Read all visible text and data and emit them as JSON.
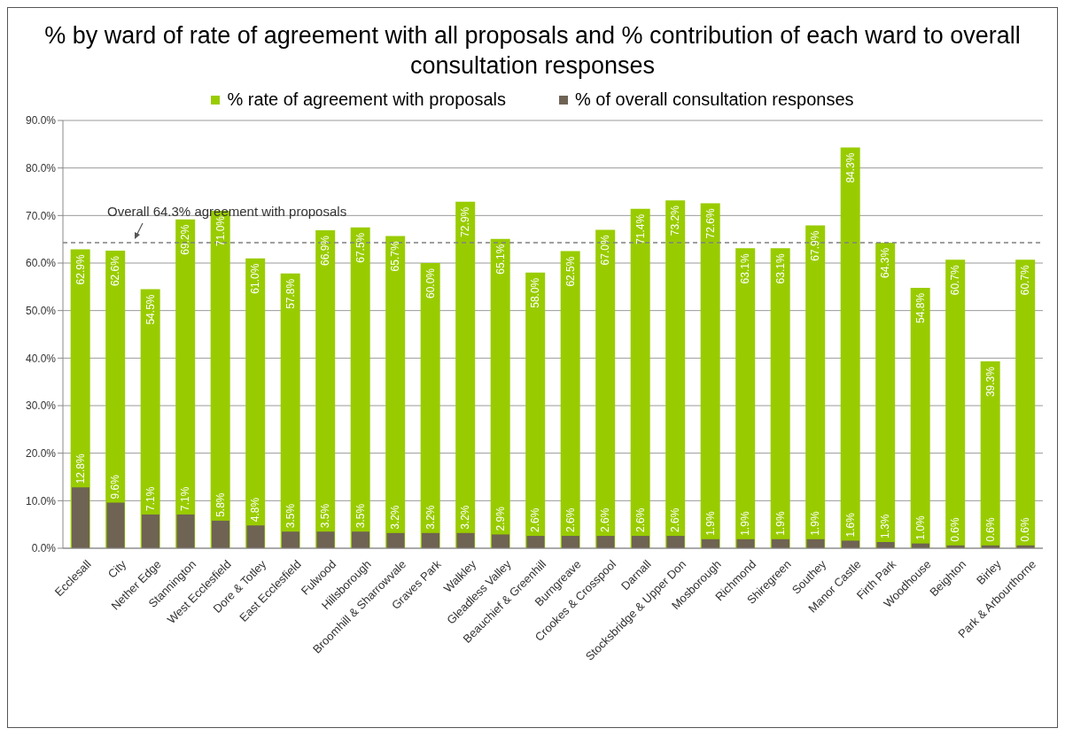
{
  "chart_data": {
    "type": "bar",
    "title": "% by ward of rate of agreement with all proposals and % contribution of each ward to overall consultation responses",
    "categories": [
      "Ecclesall",
      "City",
      "Nether Edge",
      "Stannington",
      "West Ecclesfield",
      "Dore & Totley",
      "East Ecclesfield",
      "Fulwood",
      "Hillsborough",
      "Broomhill & Sharrowvale",
      "Graves Park",
      "Walkley",
      "Gleadless Valley",
      "Beauchief & Greenhill",
      "Burngreave",
      "Crookes & Crosspool",
      "Darnall",
      "Stocksbridge & Upper Don",
      "Mosborough",
      "Richmond",
      "Shiregreen",
      "Southey",
      "Manor Castle",
      "Firth Park",
      "Woodhouse",
      "Beighton",
      "Birley",
      "Park & Arbourthorne"
    ],
    "series": [
      {
        "name": "% rate of agreement with proposals",
        "color": "#99cc00",
        "values": [
          62.9,
          62.6,
          54.5,
          69.2,
          71.0,
          61.0,
          57.8,
          66.9,
          67.5,
          65.7,
          60.0,
          72.9,
          65.1,
          58.0,
          62.5,
          67.0,
          71.4,
          73.2,
          72.6,
          63.1,
          63.1,
          67.9,
          84.3,
          64.3,
          54.8,
          60.7,
          39.3,
          60.7
        ],
        "value_labels": [
          "62.9%",
          "62.6%",
          "54.5%",
          "69.2%",
          "71.0%",
          "61.0%",
          "57.8%",
          "66.9%",
          "67.5%",
          "65.7%",
          "60.0%",
          "72.9%",
          "65.1%",
          "58.0%",
          "62.5%",
          "67.0%",
          "71.4%",
          "73.2%",
          "72.6%",
          "63.1%",
          "63.1%",
          "67.9%",
          "84.3%",
          "64.3%",
          "54.8%",
          "60.7%",
          "39.3%",
          "60.7%"
        ]
      },
      {
        "name": "% of overall consultation responses",
        "color": "#6f6353",
        "values": [
          12.8,
          9.6,
          7.1,
          7.1,
          5.8,
          4.8,
          3.5,
          3.5,
          3.5,
          3.2,
          3.2,
          3.2,
          2.9,
          2.6,
          2.6,
          2.6,
          2.6,
          2.6,
          1.9,
          1.9,
          1.9,
          1.9,
          1.6,
          1.3,
          1.0,
          0.6,
          0.6,
          0.6
        ],
        "value_labels": [
          "12.8%",
          "9.6%",
          "7.1%",
          "7.1%",
          "5.8%",
          "4.8%",
          "3.5%",
          "3.5%",
          "3.5%",
          "3.2%",
          "3.2%",
          "3.2%",
          "2.9%",
          "2.6%",
          "2.6%",
          "2.6%",
          "2.6%",
          "2.6%",
          "1.9%",
          "1.9%",
          "1.9%",
          "1.9%",
          "1.6%",
          "1.3%",
          "1.0%",
          "0.6%",
          "0.6%",
          "0.6%"
        ]
      }
    ],
    "ylim": [
      0,
      90
    ],
    "yticks": [
      {
        "value": 0,
        "label": "0.0%"
      },
      {
        "value": 10,
        "label": "10.0%"
      },
      {
        "value": 20,
        "label": "20.0%"
      },
      {
        "value": 30,
        "label": "30.0%"
      },
      {
        "value": 40,
        "label": "40.0%"
      },
      {
        "value": 50,
        "label": "50.0%"
      },
      {
        "value": 60,
        "label": "60.0%"
      },
      {
        "value": 70,
        "label": "70.0%"
      },
      {
        "value": 80,
        "label": "80.0%"
      },
      {
        "value": 90,
        "label": "90.0%"
      }
    ],
    "ref_lines": [
      {
        "axis": "y",
        "value": 64.3,
        "label": "Overall 64.3% agreement with proposals",
        "color": "#808080",
        "line_style": "dashed"
      }
    ],
    "grid": "y",
    "legend": "top"
  }
}
